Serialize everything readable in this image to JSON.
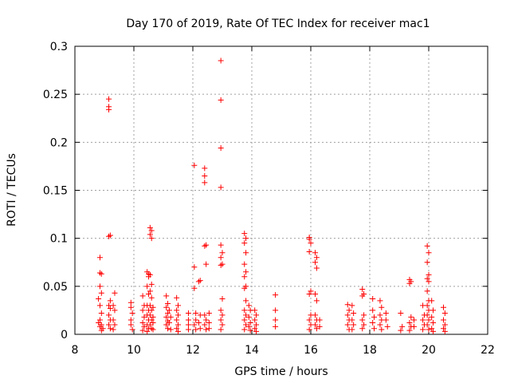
{
  "chart_data": {
    "type": "scatter",
    "title": "Day 170 of 2019, Rate Of TEC Index for receiver mac1",
    "xlabel": "GPS time / hours",
    "ylabel": "ROTI / TECUs",
    "xlim": [
      8,
      22
    ],
    "ylim": [
      0,
      0.3
    ],
    "xticks": [
      8,
      10,
      12,
      14,
      16,
      18,
      20,
      22
    ],
    "yticks": [
      0,
      0.05,
      0.1,
      0.15,
      0.2,
      0.25,
      0.3
    ],
    "xtick_labels": [
      "8",
      "10",
      "12",
      "14",
      "16",
      "18",
      "20",
      "22"
    ],
    "ytick_labels": [
      "0",
      "0.05",
      "0.1",
      "0.15",
      "0.2",
      "0.25",
      "0.3"
    ],
    "grid": true,
    "marker": "+",
    "color": "#ff0000",
    "series": [
      {
        "name": "ROTI",
        "points": [
          [
            8.85,
            0.08
          ],
          [
            8.85,
            0.064
          ],
          [
            8.9,
            0.063
          ],
          [
            8.85,
            0.05
          ],
          [
            8.9,
            0.043
          ],
          [
            8.8,
            0.037
          ],
          [
            8.85,
            0.03
          ],
          [
            8.9,
            0.022
          ],
          [
            8.85,
            0.015
          ],
          [
            8.8,
            0.012
          ],
          [
            8.9,
            0.01
          ],
          [
            8.85,
            0.008
          ],
          [
            8.95,
            0.006
          ],
          [
            8.9,
            0.004
          ],
          [
            9.15,
            0.245
          ],
          [
            9.15,
            0.237
          ],
          [
            9.15,
            0.234
          ],
          [
            9.2,
            0.103
          ],
          [
            9.15,
            0.102
          ],
          [
            9.2,
            0.035
          ],
          [
            9.15,
            0.03
          ],
          [
            9.2,
            0.027
          ],
          [
            9.15,
            0.02
          ],
          [
            9.2,
            0.015
          ],
          [
            9.15,
            0.01
          ],
          [
            9.2,
            0.006
          ],
          [
            9.35,
            0.043
          ],
          [
            9.3,
            0.03
          ],
          [
            9.35,
            0.025
          ],
          [
            9.3,
            0.015
          ],
          [
            9.35,
            0.01
          ],
          [
            9.3,
            0.005
          ],
          [
            9.9,
            0.033
          ],
          [
            9.9,
            0.028
          ],
          [
            9.95,
            0.022
          ],
          [
            9.9,
            0.015
          ],
          [
            9.9,
            0.01
          ],
          [
            9.95,
            0.005
          ],
          [
            10.3,
            0.04
          ],
          [
            10.35,
            0.03
          ],
          [
            10.3,
            0.025
          ],
          [
            10.35,
            0.018
          ],
          [
            10.3,
            0.012
          ],
          [
            10.35,
            0.008
          ],
          [
            10.3,
            0.004
          ],
          [
            10.45,
            0.065
          ],
          [
            10.5,
            0.063
          ],
          [
            10.5,
            0.06
          ],
          [
            10.45,
            0.05
          ],
          [
            10.5,
            0.042
          ],
          [
            10.45,
            0.03
          ],
          [
            10.5,
            0.025
          ],
          [
            10.45,
            0.02
          ],
          [
            10.5,
            0.015
          ],
          [
            10.45,
            0.01
          ],
          [
            10.5,
            0.006
          ],
          [
            10.45,
            0.003
          ],
          [
            10.55,
            0.111
          ],
          [
            10.6,
            0.108
          ],
          [
            10.55,
            0.104
          ],
          [
            10.6,
            0.1
          ],
          [
            10.55,
            0.062
          ],
          [
            10.6,
            0.052
          ],
          [
            10.55,
            0.045
          ],
          [
            10.6,
            0.038
          ],
          [
            10.55,
            0.03
          ],
          [
            10.6,
            0.025
          ],
          [
            10.55,
            0.02
          ],
          [
            10.6,
            0.015
          ],
          [
            10.55,
            0.01
          ],
          [
            10.6,
            0.006
          ],
          [
            10.65,
            0.028
          ],
          [
            10.65,
            0.018
          ],
          [
            10.65,
            0.012
          ],
          [
            10.65,
            0.005
          ],
          [
            11.1,
            0.04
          ],
          [
            11.15,
            0.032
          ],
          [
            11.1,
            0.028
          ],
          [
            11.15,
            0.022
          ],
          [
            11.1,
            0.018
          ],
          [
            11.15,
            0.014
          ],
          [
            11.1,
            0.01
          ],
          [
            11.15,
            0.006
          ],
          [
            11.2,
            0.025
          ],
          [
            11.25,
            0.018
          ],
          [
            11.2,
            0.012
          ],
          [
            11.25,
            0.005
          ],
          [
            11.45,
            0.038
          ],
          [
            11.5,
            0.03
          ],
          [
            11.45,
            0.025
          ],
          [
            11.5,
            0.02
          ],
          [
            11.45,
            0.015
          ],
          [
            11.5,
            0.01
          ],
          [
            11.45,
            0.006
          ],
          [
            11.5,
            0.003
          ],
          [
            11.85,
            0.022
          ],
          [
            11.85,
            0.015
          ],
          [
            11.85,
            0.01
          ],
          [
            11.85,
            0.005
          ],
          [
            12.05,
            0.176
          ],
          [
            12.05,
            0.07
          ],
          [
            12.05,
            0.048
          ],
          [
            12.1,
            0.022
          ],
          [
            12.1,
            0.015
          ],
          [
            12.05,
            0.01
          ],
          [
            12.1,
            0.005
          ],
          [
            12.25,
            0.056
          ],
          [
            12.2,
            0.055
          ],
          [
            12.25,
            0.02
          ],
          [
            12.2,
            0.012
          ],
          [
            12.25,
            0.006
          ],
          [
            12.4,
            0.173
          ],
          [
            12.4,
            0.165
          ],
          [
            12.4,
            0.158
          ],
          [
            12.45,
            0.093
          ],
          [
            12.4,
            0.092
          ],
          [
            12.45,
            0.073
          ],
          [
            12.4,
            0.02
          ],
          [
            12.45,
            0.015
          ],
          [
            12.4,
            0.01
          ],
          [
            12.45,
            0.005
          ],
          [
            12.55,
            0.022
          ],
          [
            12.55,
            0.012
          ],
          [
            12.55,
            0.006
          ],
          [
            12.95,
            0.285
          ],
          [
            12.95,
            0.244
          ],
          [
            12.95,
            0.194
          ],
          [
            12.95,
            0.153
          ],
          [
            12.95,
            0.093
          ],
          [
            13.0,
            0.085
          ],
          [
            12.95,
            0.08
          ],
          [
            13.0,
            0.073
          ],
          [
            12.95,
            0.072
          ],
          [
            13.0,
            0.037
          ],
          [
            12.95,
            0.025
          ],
          [
            13.0,
            0.02
          ],
          [
            12.95,
            0.015
          ],
          [
            13.0,
            0.01
          ],
          [
            12.95,
            0.005
          ],
          [
            13.75,
            0.105
          ],
          [
            13.8,
            0.1
          ],
          [
            13.75,
            0.095
          ],
          [
            13.8,
            0.085
          ],
          [
            13.75,
            0.073
          ],
          [
            13.8,
            0.065
          ],
          [
            13.75,
            0.06
          ],
          [
            13.8,
            0.05
          ],
          [
            13.75,
            0.048
          ],
          [
            13.8,
            0.035
          ],
          [
            13.75,
            0.025
          ],
          [
            13.8,
            0.02
          ],
          [
            13.75,
            0.015
          ],
          [
            13.8,
            0.01
          ],
          [
            13.75,
            0.005
          ],
          [
            13.9,
            0.03
          ],
          [
            13.95,
            0.025
          ],
          [
            13.9,
            0.018
          ],
          [
            13.95,
            0.012
          ],
          [
            13.9,
            0.008
          ],
          [
            13.95,
            0.004
          ],
          [
            14.1,
            0.025
          ],
          [
            14.15,
            0.02
          ],
          [
            14.1,
            0.015
          ],
          [
            14.15,
            0.01
          ],
          [
            14.1,
            0.006
          ],
          [
            14.15,
            0.003
          ],
          [
            14.8,
            0.041
          ],
          [
            14.8,
            0.025
          ],
          [
            14.8,
            0.015
          ],
          [
            14.8,
            0.008
          ],
          [
            15.95,
            0.101
          ],
          [
            15.95,
            0.099
          ],
          [
            16.0,
            0.095
          ],
          [
            15.95,
            0.086
          ],
          [
            16.0,
            0.045
          ],
          [
            15.95,
            0.042
          ],
          [
            16.0,
            0.02
          ],
          [
            15.95,
            0.015
          ],
          [
            16.0,
            0.01
          ],
          [
            15.95,
            0.005
          ],
          [
            16.15,
            0.085
          ],
          [
            16.2,
            0.08
          ],
          [
            16.15,
            0.075
          ],
          [
            16.2,
            0.069
          ],
          [
            16.15,
            0.042
          ],
          [
            16.2,
            0.035
          ],
          [
            16.15,
            0.02
          ],
          [
            16.2,
            0.015
          ],
          [
            16.15,
            0.01
          ],
          [
            16.2,
            0.006
          ],
          [
            16.3,
            0.015
          ],
          [
            16.3,
            0.008
          ],
          [
            17.25,
            0.031
          ],
          [
            17.3,
            0.025
          ],
          [
            17.25,
            0.02
          ],
          [
            17.3,
            0.015
          ],
          [
            17.25,
            0.01
          ],
          [
            17.3,
            0.005
          ],
          [
            17.4,
            0.03
          ],
          [
            17.45,
            0.022
          ],
          [
            17.4,
            0.015
          ],
          [
            17.45,
            0.01
          ],
          [
            17.4,
            0.005
          ],
          [
            17.75,
            0.047
          ],
          [
            17.8,
            0.042
          ],
          [
            17.75,
            0.04
          ],
          [
            17.8,
            0.02
          ],
          [
            17.75,
            0.015
          ],
          [
            17.8,
            0.01
          ],
          [
            17.75,
            0.006
          ],
          [
            18.1,
            0.037
          ],
          [
            18.1,
            0.025
          ],
          [
            18.15,
            0.018
          ],
          [
            18.1,
            0.012
          ],
          [
            18.15,
            0.006
          ],
          [
            18.35,
            0.035
          ],
          [
            18.4,
            0.028
          ],
          [
            18.35,
            0.02
          ],
          [
            18.4,
            0.015
          ],
          [
            18.35,
            0.01
          ],
          [
            18.4,
            0.005
          ],
          [
            18.55,
            0.022
          ],
          [
            18.55,
            0.015
          ],
          [
            18.6,
            0.008
          ],
          [
            19.05,
            0.022
          ],
          [
            19.1,
            0.008
          ],
          [
            19.05,
            0.004
          ],
          [
            19.35,
            0.057
          ],
          [
            19.4,
            0.055
          ],
          [
            19.35,
            0.053
          ],
          [
            19.4,
            0.018
          ],
          [
            19.35,
            0.012
          ],
          [
            19.4,
            0.008
          ],
          [
            19.35,
            0.004
          ],
          [
            19.5,
            0.015
          ],
          [
            19.5,
            0.008
          ],
          [
            19.8,
            0.03
          ],
          [
            19.85,
            0.02
          ],
          [
            19.8,
            0.015
          ],
          [
            19.85,
            0.01
          ],
          [
            19.8,
            0.005
          ],
          [
            19.95,
            0.092
          ],
          [
            20.0,
            0.085
          ],
          [
            19.95,
            0.075
          ],
          [
            20.0,
            0.062
          ],
          [
            19.95,
            0.058
          ],
          [
            20.0,
            0.055
          ],
          [
            19.95,
            0.045
          ],
          [
            20.0,
            0.035
          ],
          [
            19.95,
            0.03
          ],
          [
            20.0,
            0.025
          ],
          [
            19.95,
            0.02
          ],
          [
            20.0,
            0.015
          ],
          [
            19.95,
            0.01
          ],
          [
            20.0,
            0.005
          ],
          [
            20.1,
            0.035
          ],
          [
            20.15,
            0.025
          ],
          [
            20.1,
            0.018
          ],
          [
            20.15,
            0.012
          ],
          [
            20.1,
            0.006
          ],
          [
            20.15,
            0.003
          ],
          [
            20.5,
            0.028
          ],
          [
            20.55,
            0.022
          ],
          [
            20.5,
            0.015
          ],
          [
            20.55,
            0.01
          ],
          [
            20.5,
            0.006
          ],
          [
            20.55,
            0.003
          ]
        ]
      }
    ]
  }
}
